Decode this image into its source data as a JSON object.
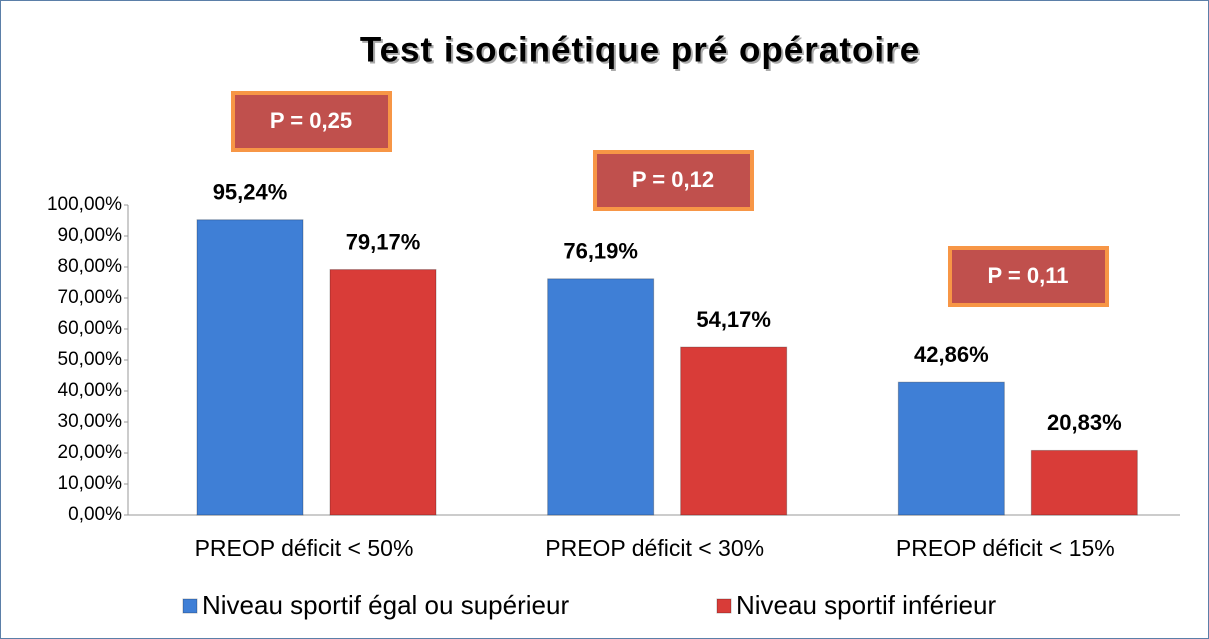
{
  "chart_data": {
    "type": "bar",
    "title": "Test isocinétique pré opératoire",
    "categories": [
      "PREOP déficit < 50%",
      "PREOP déficit < 30%",
      "PREOP déficit < 15%"
    ],
    "series": [
      {
        "name": "Niveau sportif égal ou supérieur",
        "color": "#3f7fd6",
        "values": [
          95.24,
          76.19,
          42.86
        ],
        "value_labels": [
          "95,24%",
          "76,19%",
          "42,86%"
        ]
      },
      {
        "name": "Niveau sportif inférieur",
        "color": "#d93c38",
        "values": [
          79.17,
          54.17,
          20.83
        ],
        "value_labels": [
          "79,17%",
          "54,17%",
          "20,83%"
        ]
      }
    ],
    "annotations": [
      "P = 0,25",
      "P = 0,12",
      "P = 0,11"
    ],
    "ylim": [
      0,
      100
    ],
    "yticks": [
      {
        "value": 0,
        "label": "0,00%"
      },
      {
        "value": 10,
        "label": "10,00%"
      },
      {
        "value": 20,
        "label": "20,00%"
      },
      {
        "value": 30,
        "label": "30,00%"
      },
      {
        "value": 40,
        "label": "40,00%"
      },
      {
        "value": 50,
        "label": "50,00%"
      },
      {
        "value": 60,
        "label": "60,00%"
      },
      {
        "value": 70,
        "label": "70,00%"
      },
      {
        "value": 80,
        "label": "80,00%"
      },
      {
        "value": 90,
        "label": "90,00%"
      },
      {
        "value": 100,
        "label": "100,00%"
      }
    ],
    "grid": false
  }
}
